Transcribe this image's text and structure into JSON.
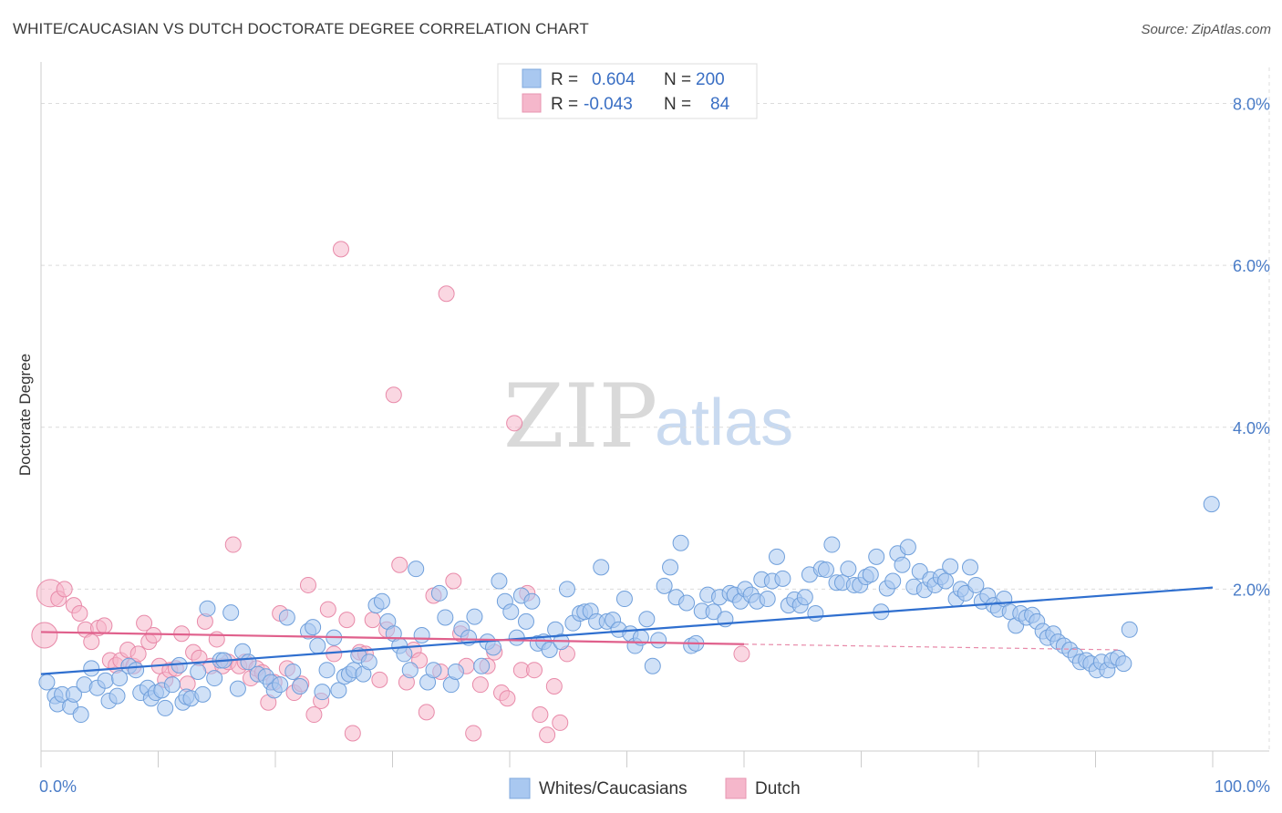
{
  "title": "WHITE/CAUCASIAN VS DUTCH DOCTORATE DEGREE CORRELATION CHART",
  "source": "Source: ZipAtlas.com",
  "watermark": {
    "zip": "ZIP",
    "atlas": "atlas"
  },
  "legend_box": {
    "rows": [
      {
        "r_label": "R =",
        "r_value": "0.604",
        "n_label": "N =",
        "n_value": "200",
        "color": "#a9c8f0"
      },
      {
        "r_label": "R =",
        "r_value": "-0.043",
        "n_label": "N =",
        "n_value": "84",
        "color": "#f5b7cb"
      }
    ]
  },
  "bottom_legend": [
    {
      "label": "Whites/Caucasians",
      "color": "#a9c8f0"
    },
    {
      "label": "Dutch",
      "color": "#f5b7cb"
    }
  ],
  "chart_data": {
    "type": "scatter",
    "title": "WHITE/CAUCASIAN VS DUTCH DOCTORATE DEGREE CORRELATION CHART",
    "xlabel": "",
    "ylabel": "Doctorate Degree",
    "xlim": [
      0,
      100
    ],
    "ylim": [
      0,
      8.4
    ],
    "x_tick_labels": [
      "0.0%",
      "100.0%"
    ],
    "y_ticks": [
      2,
      4,
      6,
      8
    ],
    "y_tick_labels": [
      "2.0%",
      "4.0%",
      "6.0%",
      "8.0%"
    ],
    "series": [
      {
        "name": "Whites/Caucasians",
        "color": "#a9c8f0",
        "stroke": "#6f9fdb",
        "trend": {
          "x": [
            0,
            100
          ],
          "y": [
            0.95,
            2.02
          ],
          "color": "#2f6fcf"
        },
        "points": [
          [
            0.5,
            0.85
          ],
          [
            1.2,
            0.68
          ],
          [
            1.4,
            0.58
          ],
          [
            1.8,
            0.7
          ],
          [
            2.5,
            0.55
          ],
          [
            2.8,
            0.7
          ],
          [
            3.4,
            0.45
          ],
          [
            3.7,
            0.82
          ],
          [
            4.3,
            1.02
          ],
          [
            4.8,
            0.78
          ],
          [
            5.5,
            0.87
          ],
          [
            5.8,
            0.62
          ],
          [
            6.5,
            0.68
          ],
          [
            6.7,
            0.9
          ],
          [
            7.5,
            1.05
          ],
          [
            8.1,
            1.0
          ],
          [
            8.5,
            0.72
          ],
          [
            9.1,
            0.78
          ],
          [
            9.4,
            0.65
          ],
          [
            9.8,
            0.72
          ],
          [
            10.3,
            0.75
          ],
          [
            10.6,
            0.53
          ],
          [
            11.2,
            0.82
          ],
          [
            11.8,
            1.06
          ],
          [
            12.1,
            0.6
          ],
          [
            12.4,
            0.67
          ],
          [
            12.8,
            0.65
          ],
          [
            13.4,
            0.98
          ],
          [
            13.8,
            0.7
          ],
          [
            14.2,
            1.76
          ],
          [
            14.8,
            0.9
          ],
          [
            15.3,
            1.12
          ],
          [
            15.6,
            1.12
          ],
          [
            16.2,
            1.71
          ],
          [
            16.8,
            0.77
          ],
          [
            17.2,
            1.23
          ],
          [
            17.7,
            1.1
          ],
          [
            18.5,
            0.95
          ],
          [
            19.2,
            0.92
          ],
          [
            19.6,
            0.85
          ],
          [
            19.9,
            0.75
          ],
          [
            20.4,
            0.82
          ],
          [
            21.0,
            1.65
          ],
          [
            21.5,
            0.98
          ],
          [
            22.1,
            0.8
          ],
          [
            22.8,
            1.48
          ],
          [
            23.2,
            1.53
          ],
          [
            23.6,
            1.3
          ],
          [
            24.0,
            0.73
          ],
          [
            24.4,
            1.0
          ],
          [
            25.0,
            1.4
          ],
          [
            25.4,
            0.75
          ],
          [
            25.9,
            0.92
          ],
          [
            26.3,
            0.95
          ],
          [
            26.7,
            1.0
          ],
          [
            27.1,
            1.18
          ],
          [
            27.5,
            0.95
          ],
          [
            28.0,
            1.1
          ],
          [
            28.6,
            1.8
          ],
          [
            29.1,
            1.85
          ],
          [
            29.6,
            1.6
          ],
          [
            30.1,
            1.45
          ],
          [
            30.6,
            1.3
          ],
          [
            31.0,
            1.2
          ],
          [
            31.5,
            1.0
          ],
          [
            32.0,
            2.25
          ],
          [
            32.5,
            1.43
          ],
          [
            33.0,
            0.85
          ],
          [
            33.5,
            1.0
          ],
          [
            34.0,
            1.95
          ],
          [
            34.5,
            1.65
          ],
          [
            35.0,
            0.82
          ],
          [
            35.4,
            0.98
          ],
          [
            35.9,
            1.51
          ],
          [
            36.5,
            1.4
          ],
          [
            37.0,
            1.66
          ],
          [
            37.6,
            1.05
          ],
          [
            38.1,
            1.35
          ],
          [
            38.6,
            1.28
          ],
          [
            39.1,
            2.1
          ],
          [
            39.6,
            1.85
          ],
          [
            40.1,
            1.72
          ],
          [
            40.6,
            1.4
          ],
          [
            41.0,
            1.92
          ],
          [
            41.4,
            1.6
          ],
          [
            41.9,
            1.85
          ],
          [
            42.4,
            1.33
          ],
          [
            42.9,
            1.35
          ],
          [
            43.4,
            1.25
          ],
          [
            43.9,
            1.5
          ],
          [
            44.4,
            1.35
          ],
          [
            44.9,
            2.0
          ],
          [
            45.4,
            1.58
          ],
          [
            46.0,
            1.7
          ],
          [
            46.4,
            1.72
          ],
          [
            46.9,
            1.73
          ],
          [
            47.4,
            1.6
          ],
          [
            47.8,
            2.27
          ],
          [
            48.3,
            1.6
          ],
          [
            48.8,
            1.62
          ],
          [
            49.3,
            1.5
          ],
          [
            49.8,
            1.88
          ],
          [
            50.3,
            1.45
          ],
          [
            50.7,
            1.3
          ],
          [
            51.2,
            1.4
          ],
          [
            51.7,
            1.63
          ],
          [
            52.2,
            1.05
          ],
          [
            52.7,
            1.37
          ],
          [
            53.2,
            2.04
          ],
          [
            53.7,
            2.27
          ],
          [
            54.2,
            1.9
          ],
          [
            54.6,
            2.57
          ],
          [
            55.1,
            1.83
          ],
          [
            55.5,
            1.3
          ],
          [
            55.9,
            1.33
          ],
          [
            56.4,
            1.73
          ],
          [
            56.9,
            1.93
          ],
          [
            57.4,
            1.72
          ],
          [
            57.9,
            1.9
          ],
          [
            58.4,
            1.63
          ],
          [
            58.8,
            1.95
          ],
          [
            59.2,
            1.93
          ],
          [
            59.7,
            1.85
          ],
          [
            60.1,
            2.0
          ],
          [
            60.6,
            1.93
          ],
          [
            61.1,
            1.85
          ],
          [
            61.5,
            2.12
          ],
          [
            62.0,
            1.88
          ],
          [
            62.4,
            2.1
          ],
          [
            62.8,
            2.4
          ],
          [
            63.3,
            2.13
          ],
          [
            63.8,
            1.8
          ],
          [
            64.3,
            1.87
          ],
          [
            64.8,
            1.8
          ],
          [
            65.2,
            1.9
          ],
          [
            65.6,
            2.18
          ],
          [
            66.1,
            1.7
          ],
          [
            66.6,
            2.25
          ],
          [
            67.0,
            2.24
          ],
          [
            67.5,
            2.55
          ],
          [
            67.9,
            2.08
          ],
          [
            68.4,
            2.08
          ],
          [
            68.9,
            2.25
          ],
          [
            69.4,
            2.05
          ],
          [
            69.9,
            2.05
          ],
          [
            70.4,
            2.15
          ],
          [
            70.8,
            2.18
          ],
          [
            71.3,
            2.4
          ],
          [
            71.7,
            1.72
          ],
          [
            72.2,
            2.01
          ],
          [
            72.7,
            2.1
          ],
          [
            73.1,
            2.44
          ],
          [
            73.5,
            2.3
          ],
          [
            74.0,
            2.52
          ],
          [
            74.5,
            2.03
          ],
          [
            75.0,
            2.22
          ],
          [
            75.4,
            1.99
          ],
          [
            75.9,
            2.12
          ],
          [
            76.3,
            2.05
          ],
          [
            76.8,
            2.15
          ],
          [
            77.2,
            2.1
          ],
          [
            77.6,
            2.28
          ],
          [
            78.1,
            1.88
          ],
          [
            78.5,
            2.0
          ],
          [
            78.9,
            1.95
          ],
          [
            79.3,
            2.27
          ],
          [
            79.8,
            2.05
          ],
          [
            80.3,
            1.85
          ],
          [
            80.8,
            1.92
          ],
          [
            81.3,
            1.8
          ],
          [
            81.7,
            1.75
          ],
          [
            82.2,
            1.88
          ],
          [
            82.7,
            1.72
          ],
          [
            83.2,
            1.55
          ],
          [
            83.6,
            1.7
          ],
          [
            84.1,
            1.65
          ],
          [
            84.6,
            1.68
          ],
          [
            85.0,
            1.6
          ],
          [
            85.5,
            1.48
          ],
          [
            85.9,
            1.4
          ],
          [
            86.4,
            1.45
          ],
          [
            86.8,
            1.35
          ],
          [
            87.3,
            1.3
          ],
          [
            87.8,
            1.25
          ],
          [
            88.3,
            1.18
          ],
          [
            88.7,
            1.1
          ],
          [
            89.2,
            1.12
          ],
          [
            89.6,
            1.08
          ],
          [
            90.1,
            1.0
          ],
          [
            90.5,
            1.1
          ],
          [
            91.0,
            1.0
          ],
          [
            91.4,
            1.12
          ],
          [
            91.9,
            1.15
          ],
          [
            92.4,
            1.08
          ],
          [
            92.9,
            1.5
          ],
          [
            99.9,
            3.05
          ]
        ]
      },
      {
        "name": "Dutch",
        "color": "#f5b7cb",
        "stroke": "#e88aa9",
        "trend": {
          "x": [
            0,
            60
          ],
          "y": [
            1.47,
            1.32
          ],
          "color": "#e0608c"
        },
        "trend_dashed": {
          "x": [
            60,
            92
          ],
          "y": [
            1.32,
            1.25
          ],
          "color": "#e88aa9"
        },
        "points": [
          [
            0.8,
            1.95
          ],
          [
            0.3,
            1.43
          ],
          [
            1.5,
            1.88
          ],
          [
            2.0,
            2.0
          ],
          [
            2.8,
            1.8
          ],
          [
            3.3,
            1.7
          ],
          [
            3.8,
            1.5
          ],
          [
            4.3,
            1.35
          ],
          [
            4.9,
            1.52
          ],
          [
            5.4,
            1.55
          ],
          [
            5.9,
            1.12
          ],
          [
            6.4,
            1.06
          ],
          [
            6.8,
            1.12
          ],
          [
            7.4,
            1.25
          ],
          [
            7.9,
            1.05
          ],
          [
            8.3,
            1.2
          ],
          [
            8.8,
            1.58
          ],
          [
            9.2,
            1.35
          ],
          [
            9.6,
            1.43
          ],
          [
            10.1,
            1.05
          ],
          [
            10.6,
            0.88
          ],
          [
            11.0,
            1.0
          ],
          [
            11.5,
            1.02
          ],
          [
            12.0,
            1.45
          ],
          [
            12.5,
            0.83
          ],
          [
            13.0,
            1.22
          ],
          [
            13.5,
            1.15
          ],
          [
            14.0,
            1.6
          ],
          [
            14.5,
            1.05
          ],
          [
            15.0,
            1.38
          ],
          [
            15.5,
            1.05
          ],
          [
            16.0,
            1.1
          ],
          [
            16.4,
            2.55
          ],
          [
            16.9,
            1.05
          ],
          [
            17.4,
            1.1
          ],
          [
            17.9,
            0.9
          ],
          [
            18.4,
            1.02
          ],
          [
            18.9,
            0.97
          ],
          [
            19.4,
            0.6
          ],
          [
            19.9,
            0.85
          ],
          [
            20.4,
            1.7
          ],
          [
            21.0,
            1.02
          ],
          [
            21.6,
            0.72
          ],
          [
            22.2,
            0.83
          ],
          [
            22.8,
            2.05
          ],
          [
            23.3,
            0.45
          ],
          [
            23.9,
            0.62
          ],
          [
            24.5,
            1.75
          ],
          [
            25.0,
            1.2
          ],
          [
            25.6,
            6.2
          ],
          [
            26.1,
            1.62
          ],
          [
            26.6,
            0.22
          ],
          [
            27.2,
            1.22
          ],
          [
            27.7,
            1.2
          ],
          [
            28.3,
            1.62
          ],
          [
            28.9,
            0.88
          ],
          [
            29.5,
            1.5
          ],
          [
            30.1,
            4.4
          ],
          [
            30.6,
            2.3
          ],
          [
            31.2,
            0.85
          ],
          [
            31.8,
            1.25
          ],
          [
            32.3,
            1.12
          ],
          [
            32.9,
            0.48
          ],
          [
            33.5,
            1.92
          ],
          [
            34.1,
            0.98
          ],
          [
            34.6,
            5.65
          ],
          [
            35.2,
            2.1
          ],
          [
            35.8,
            1.45
          ],
          [
            36.3,
            1.05
          ],
          [
            36.9,
            0.22
          ],
          [
            37.5,
            0.82
          ],
          [
            38.1,
            1.05
          ],
          [
            38.7,
            1.22
          ],
          [
            39.3,
            0.72
          ],
          [
            39.8,
            0.65
          ],
          [
            40.4,
            4.05
          ],
          [
            41.0,
            1.0
          ],
          [
            41.5,
            1.95
          ],
          [
            42.1,
            1.0
          ],
          [
            42.6,
            0.45
          ],
          [
            43.2,
            0.2
          ],
          [
            43.8,
            0.8
          ],
          [
            44.3,
            0.35
          ],
          [
            44.9,
            1.2
          ],
          [
            59.8,
            1.2
          ]
        ]
      }
    ]
  }
}
